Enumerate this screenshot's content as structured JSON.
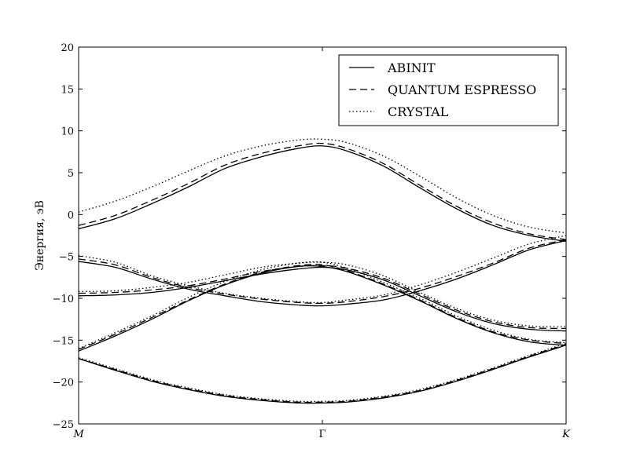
{
  "chart_data": {
    "type": "line",
    "title": "",
    "xlabel": "",
    "ylabel": "Энергия, эВ",
    "ylim": [
      -25,
      20
    ],
    "yticks": [
      20,
      15,
      10,
      5,
      0,
      -5,
      -10,
      -15,
      -20,
      -25
    ],
    "xlim": [
      0,
      2
    ],
    "xticks": [
      {
        "label": "M",
        "x": 0,
        "italic": true
      },
      {
        "label": "Γ",
        "x": 1,
        "italic": false
      },
      {
        "label": "K",
        "x": 2,
        "italic": true
      }
    ],
    "grid": false,
    "legend_position": "top-right",
    "series": [
      {
        "name": "ABINIT",
        "style": "solid",
        "bands": [
          {
            "x": [
              0,
              0.15,
              0.3,
              0.45,
              0.6,
              0.75,
              0.9,
              1.0,
              1.1,
              1.25,
              1.4,
              1.55,
              1.7,
              1.85,
              2.0
            ],
            "y": [
              -1.7,
              -0.5,
              1.3,
              3.3,
              5.5,
              6.9,
              7.9,
              8.2,
              7.6,
              5.8,
              3.2,
              0.7,
              -1.3,
              -2.5,
              -3.2
            ]
          },
          {
            "x": [
              0,
              0.15,
              0.3,
              0.45,
              0.6,
              0.75,
              0.9,
              1.0,
              1.1,
              1.25,
              1.4,
              1.55,
              1.7,
              1.85,
              2.0
            ],
            "y": [
              -5.6,
              -6.3,
              -7.7,
              -8.9,
              -9.7,
              -10.4,
              -10.8,
              -10.9,
              -10.7,
              -10.2,
              -9.1,
              -7.7,
              -6.0,
              -4.2,
              -3.1
            ]
          },
          {
            "x": [
              0,
              0.15,
              0.3,
              0.45,
              0.6,
              0.75,
              0.9,
              1.0,
              1.1,
              1.25,
              1.4,
              1.55,
              1.7,
              1.85,
              2.0
            ],
            "y": [
              -9.7,
              -9.6,
              -9.3,
              -8.7,
              -7.9,
              -7.1,
              -6.5,
              -6.3,
              -6.6,
              -7.8,
              -9.7,
              -11.6,
              -13.0,
              -13.7,
              -13.9
            ]
          },
          {
            "x": [
              0,
              0.15,
              0.3,
              0.45,
              0.6,
              0.75,
              0.9,
              1.0,
              1.1,
              1.25,
              1.4,
              1.55,
              1.7,
              1.85,
              2.0
            ],
            "y": [
              -16.3,
              -14.5,
              -12.5,
              -10.3,
              -8.4,
              -7.0,
              -6.2,
              -6.2,
              -6.8,
              -8.4,
              -10.3,
              -12.4,
              -14.1,
              -15.2,
              -15.6
            ]
          },
          {
            "x": [
              0,
              0.15,
              0.3,
              0.45,
              0.6,
              0.75,
              0.9,
              1.0,
              1.1,
              1.25,
              1.4,
              1.55,
              1.7,
              1.85,
              2.0
            ],
            "y": [
              -17.2,
              -18.6,
              -19.9,
              -20.9,
              -21.7,
              -22.2,
              -22.5,
              -22.5,
              -22.4,
              -21.9,
              -21.1,
              -19.9,
              -18.5,
              -17.0,
              -15.6
            ]
          }
        ]
      },
      {
        "name": "QUANTUM ESPRESSO",
        "style": "dashed",
        "bands": [
          {
            "x": [
              0,
              0.15,
              0.3,
              0.45,
              0.6,
              0.75,
              0.9,
              1.0,
              1.1,
              1.25,
              1.4,
              1.55,
              1.7,
              1.85,
              2.0
            ],
            "y": [
              -1.3,
              -0.1,
              1.7,
              3.7,
              5.9,
              7.3,
              8.2,
              8.5,
              7.9,
              6.1,
              3.5,
              1.0,
              -1.0,
              -2.3,
              -3.0
            ]
          },
          {
            "x": [
              0,
              0.15,
              0.3,
              0.45,
              0.6,
              0.75,
              0.9,
              1.0,
              1.1,
              1.25,
              1.4,
              1.55,
              1.7,
              1.85,
              2.0
            ],
            "y": [
              -5.3,
              -6.0,
              -7.5,
              -8.7,
              -9.5,
              -10.1,
              -10.5,
              -10.6,
              -10.4,
              -9.8,
              -8.8,
              -7.4,
              -5.8,
              -4.0,
              -3.0
            ]
          },
          {
            "x": [
              0,
              0.15,
              0.3,
              0.45,
              0.6,
              0.75,
              0.9,
              1.0,
              1.1,
              1.25,
              1.4,
              1.55,
              1.7,
              1.85,
              2.0
            ],
            "y": [
              -9.4,
              -9.3,
              -9.0,
              -8.5,
              -7.7,
              -6.8,
              -6.2,
              -6.1,
              -6.4,
              -7.6,
              -9.5,
              -11.4,
              -12.8,
              -13.5,
              -13.6
            ]
          },
          {
            "x": [
              0,
              0.15,
              0.3,
              0.45,
              0.6,
              0.75,
              0.9,
              1.0,
              1.1,
              1.25,
              1.4,
              1.55,
              1.7,
              1.85,
              2.0
            ],
            "y": [
              -16.1,
              -14.3,
              -12.3,
              -10.2,
              -8.3,
              -6.9,
              -6.1,
              -6.0,
              -6.7,
              -8.3,
              -10.2,
              -12.3,
              -14.0,
              -15.0,
              -15.4
            ]
          },
          {
            "x": [
              0,
              0.15,
              0.3,
              0.45,
              0.6,
              0.75,
              0.9,
              1.0,
              1.1,
              1.25,
              1.4,
              1.55,
              1.7,
              1.85,
              2.0
            ],
            "y": [
              -17.2,
              -18.5,
              -19.8,
              -20.8,
              -21.6,
              -22.1,
              -22.4,
              -22.4,
              -22.3,
              -21.8,
              -21.0,
              -19.8,
              -18.4,
              -16.9,
              -15.5
            ]
          }
        ]
      },
      {
        "name": "CRYSTAL",
        "style": "dotted",
        "bands": [
          {
            "x": [
              0,
              0.15,
              0.3,
              0.45,
              0.6,
              0.75,
              0.9,
              1.0,
              1.1,
              1.25,
              1.4,
              1.55,
              1.7,
              1.85,
              2.0
            ],
            "y": [
              0.3,
              1.6,
              3.3,
              5.2,
              7.0,
              8.2,
              8.9,
              9.0,
              8.6,
              7.0,
              4.6,
              2.0,
              -0.1,
              -1.5,
              -2.2
            ]
          },
          {
            "x": [
              0,
              0.15,
              0.3,
              0.45,
              0.6,
              0.75,
              0.9,
              1.0,
              1.1,
              1.25,
              1.4,
              1.55,
              1.7,
              1.85,
              2.0
            ],
            "y": [
              -4.9,
              -5.7,
              -7.3,
              -8.5,
              -9.4,
              -10.0,
              -10.4,
              -10.5,
              -10.2,
              -9.6,
              -8.4,
              -6.9,
              -5.2,
              -3.5,
              -2.5
            ]
          },
          {
            "x": [
              0,
              0.15,
              0.3,
              0.45,
              0.6,
              0.75,
              0.9,
              1.0,
              1.1,
              1.25,
              1.4,
              1.55,
              1.7,
              1.85,
              2.0
            ],
            "y": [
              -9.2,
              -9.1,
              -8.7,
              -8.1,
              -7.2,
              -6.3,
              -5.8,
              -5.7,
              -6.0,
              -7.3,
              -9.3,
              -11.2,
              -12.6,
              -13.3,
              -13.4
            ]
          },
          {
            "x": [
              0,
              0.15,
              0.3,
              0.45,
              0.6,
              0.75,
              0.9,
              1.0,
              1.1,
              1.25,
              1.4,
              1.55,
              1.7,
              1.85,
              2.0
            ],
            "y": [
              -16.0,
              -14.1,
              -12.1,
              -9.9,
              -8.0,
              -6.6,
              -5.8,
              -5.7,
              -6.4,
              -8.1,
              -10.0,
              -12.1,
              -13.8,
              -14.9,
              -15.3
            ]
          },
          {
            "x": [
              0,
              0.15,
              0.3,
              0.45,
              0.6,
              0.75,
              0.9,
              1.0,
              1.1,
              1.25,
              1.4,
              1.55,
              1.7,
              1.85,
              2.0
            ],
            "y": [
              -17.1,
              -18.4,
              -19.7,
              -20.7,
              -21.5,
              -22.0,
              -22.3,
              -22.3,
              -22.2,
              -21.7,
              -20.9,
              -19.7,
              -18.3,
              -16.8,
              -15.4
            ]
          }
        ]
      }
    ]
  }
}
